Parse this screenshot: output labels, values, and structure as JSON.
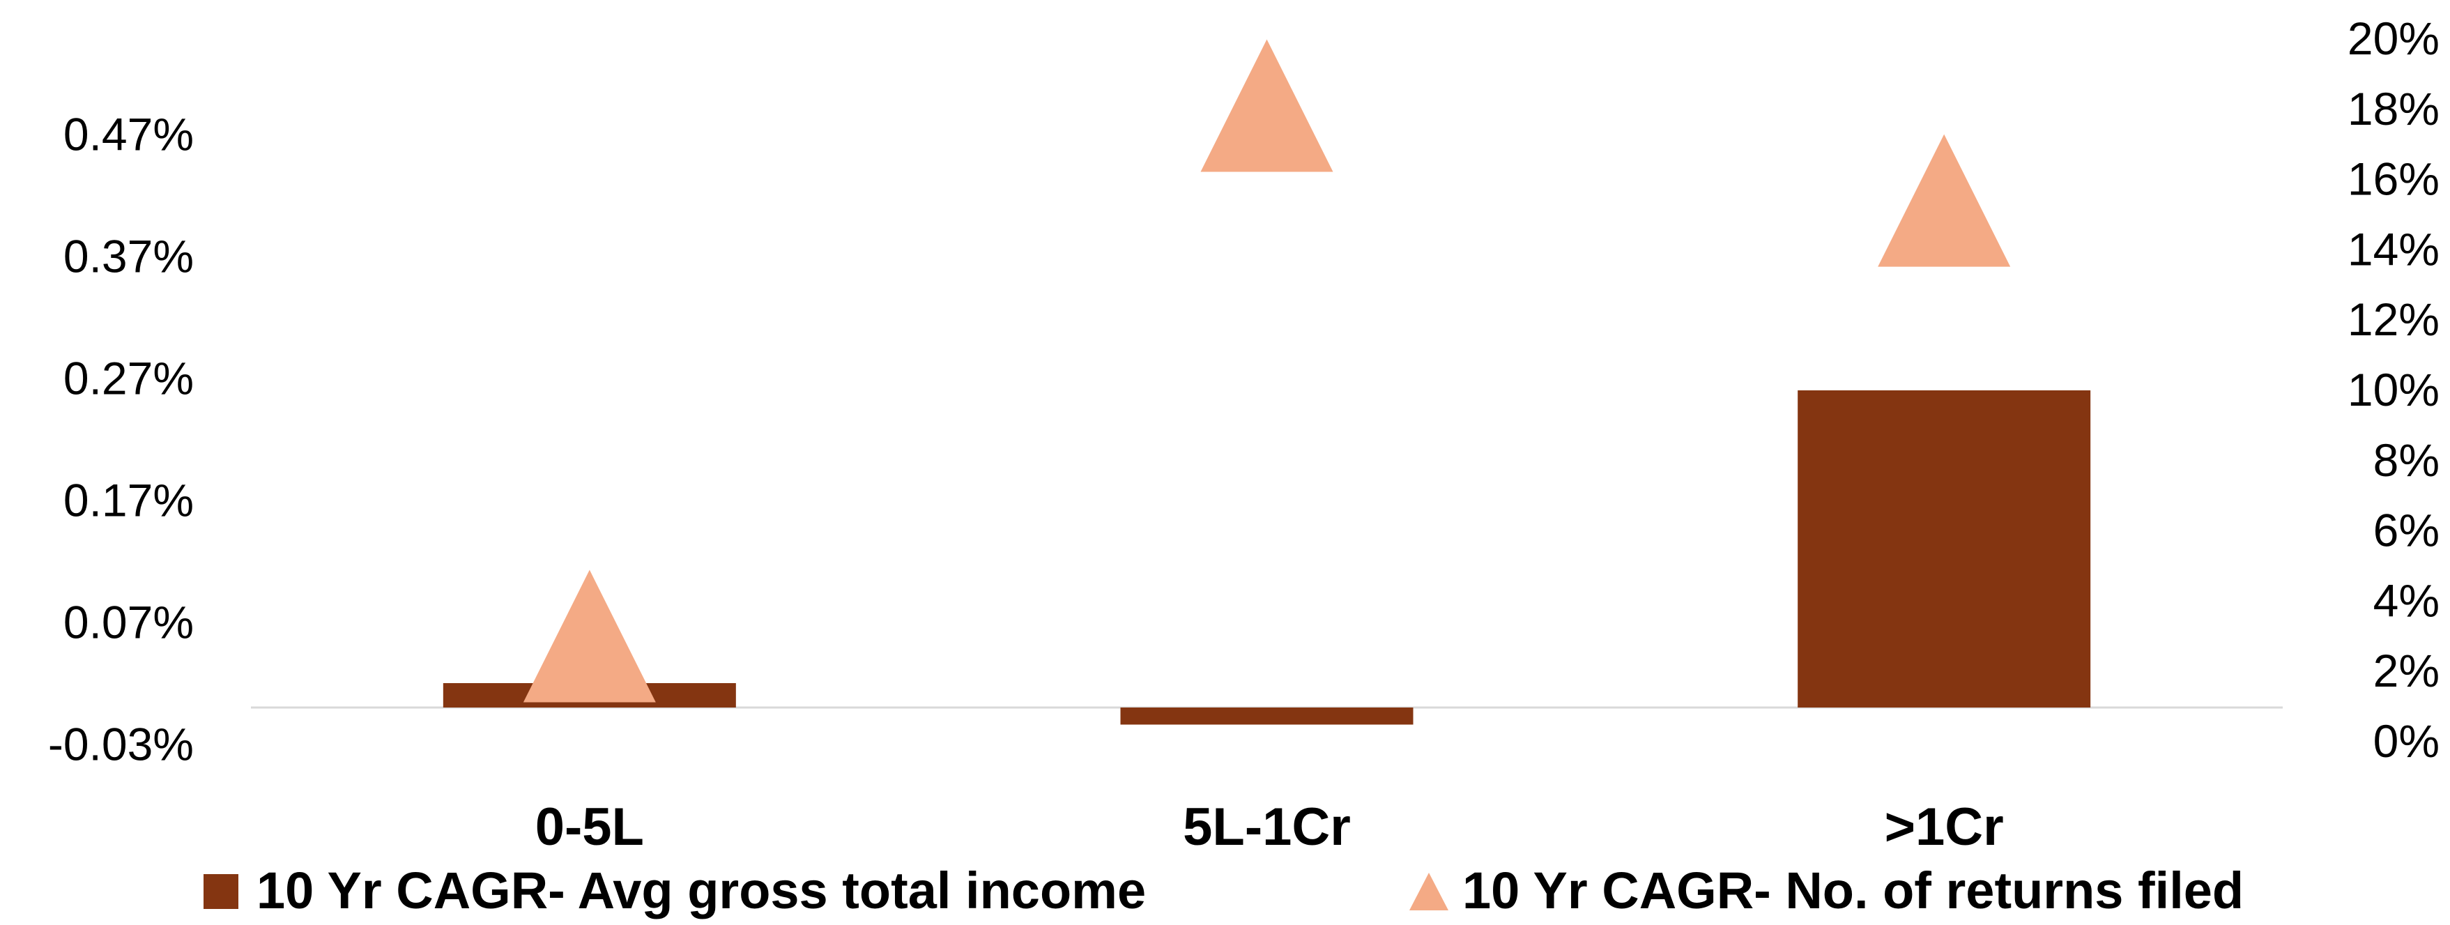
{
  "chart_data": {
    "type": "bar",
    "categories": [
      "0-5L",
      "5L-1Cr",
      ">1Cr"
    ],
    "series": [
      {
        "name": "10 Yr CAGR- Avg gross total income",
        "type": "bar",
        "axis": "left",
        "values": [
          0.02,
          -0.014,
          0.26
        ],
        "color": "#843511"
      },
      {
        "name": "10 Yr CAGR- No. of returns filed",
        "type": "scatter",
        "marker": "triangle",
        "axis": "right",
        "values": [
          1.1,
          16.2,
          13.5
        ],
        "color": "#F4AA85"
      }
    ],
    "y_left": {
      "ticks": [
        "0.47%",
        "0.37%",
        "0.27%",
        "0.17%",
        "0.07%",
        "-0.03%"
      ],
      "tick_values": [
        0.47,
        0.37,
        0.27,
        0.17,
        0.07,
        -0.03
      ]
    },
    "y_right": {
      "ticks": [
        "20%",
        "18%",
        "16%",
        "14%",
        "12%",
        "10%",
        "8%",
        "6%",
        "4%",
        "2%",
        "0%"
      ],
      "tick_values": [
        20,
        18,
        16,
        14,
        12,
        10,
        8,
        6,
        4,
        2,
        0
      ]
    },
    "legend": {
      "position": "bottom",
      "entries": [
        "10 Yr CAGR- Avg gross total income",
        "10 Yr CAGR- No. of returns filed"
      ]
    },
    "gridlines": false
  }
}
